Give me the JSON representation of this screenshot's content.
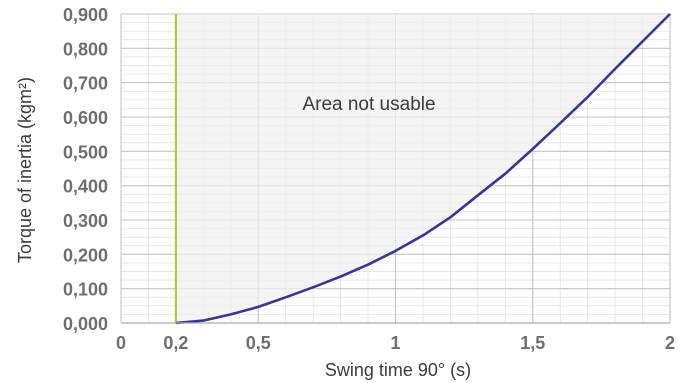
{
  "chart_data": {
    "type": "line",
    "xlabel": "Swing time 90° (s)",
    "ylabel": "Torque of inertia (kgm²)",
    "xlim": [
      0,
      2
    ],
    "ylim": [
      0,
      0.9
    ],
    "x_ticks": [
      {
        "value": 0,
        "label": "0"
      },
      {
        "value": 0.2,
        "label": "0,2"
      },
      {
        "value": 0.5,
        "label": "0,5"
      },
      {
        "value": 1,
        "label": "1"
      },
      {
        "value": 1.5,
        "label": "1,5"
      },
      {
        "value": 2,
        "label": "2"
      }
    ],
    "y_ticks": [
      {
        "value": 0,
        "label": "0,000"
      },
      {
        "value": 0.1,
        "label": "0,100"
      },
      {
        "value": 0.2,
        "label": "0,200"
      },
      {
        "value": 0.3,
        "label": "0,300"
      },
      {
        "value": 0.4,
        "label": "0,400"
      },
      {
        "value": 0.5,
        "label": "0,500"
      },
      {
        "value": 0.6,
        "label": "0,600"
      },
      {
        "value": 0.7,
        "label": "0,700"
      },
      {
        "value": 0.8,
        "label": "0,800"
      },
      {
        "value": 0.9,
        "label": "0,900"
      }
    ],
    "minor_x_step": 0.1,
    "minor_y_step": 0.025,
    "grid": true,
    "limit_line": {
      "x": 0.2,
      "color": "#a6ce39"
    },
    "unusable_region": {
      "label": "Area not usable",
      "fill": "#f0f0f1"
    },
    "series": [
      {
        "color": "#343891",
        "x": [
          0.2,
          0.3,
          0.4,
          0.5,
          0.6,
          0.7,
          0.8,
          0.9,
          1.0,
          1.1,
          1.2,
          1.3,
          1.4,
          1.5,
          1.6,
          1.7,
          1.8,
          1.9,
          2.0
        ],
        "y": [
          0.0,
          0.007,
          0.025,
          0.047,
          0.075,
          0.104,
          0.135,
          0.17,
          0.21,
          0.255,
          0.308,
          0.372,
          0.435,
          0.507,
          0.582,
          0.658,
          0.74,
          0.82,
          0.9
        ]
      }
    ]
  }
}
